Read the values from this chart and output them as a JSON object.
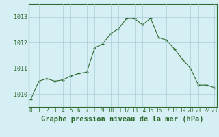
{
  "x": [
    0,
    1,
    2,
    3,
    4,
    5,
    6,
    7,
    8,
    9,
    10,
    11,
    12,
    13,
    14,
    15,
    16,
    17,
    18,
    19,
    20,
    21,
    22,
    23
  ],
  "y": [
    1009.8,
    1010.5,
    1010.6,
    1010.5,
    1010.55,
    1010.7,
    1010.8,
    1010.85,
    1011.8,
    1011.95,
    1012.35,
    1012.55,
    1012.95,
    1012.93,
    1012.7,
    1012.95,
    1012.2,
    1012.1,
    1011.75,
    1011.35,
    1011.0,
    1010.35,
    1010.35,
    1010.25
  ],
  "line_color": "#2d6a2d",
  "marker_color": "#2d6a2d",
  "bg_color": "#d6eff5",
  "grid_color": "#aacdd8",
  "border_color": "#2d6a2d",
  "xlabel": "Graphe pression niveau de la mer (hPa)",
  "label_color": "#2d6a2d",
  "label_fontsize": 7.5,
  "tick_fontsize": 5.5,
  "ylim_min": 1009.5,
  "ylim_max": 1013.5,
  "yticks": [
    1010,
    1011,
    1012,
    1013
  ],
  "xlim_min": -0.3,
  "xlim_max": 23.3,
  "xticks": [
    0,
    1,
    2,
    3,
    4,
    5,
    6,
    7,
    8,
    9,
    10,
    11,
    12,
    13,
    14,
    15,
    16,
    17,
    18,
    19,
    20,
    21,
    22,
    23
  ]
}
